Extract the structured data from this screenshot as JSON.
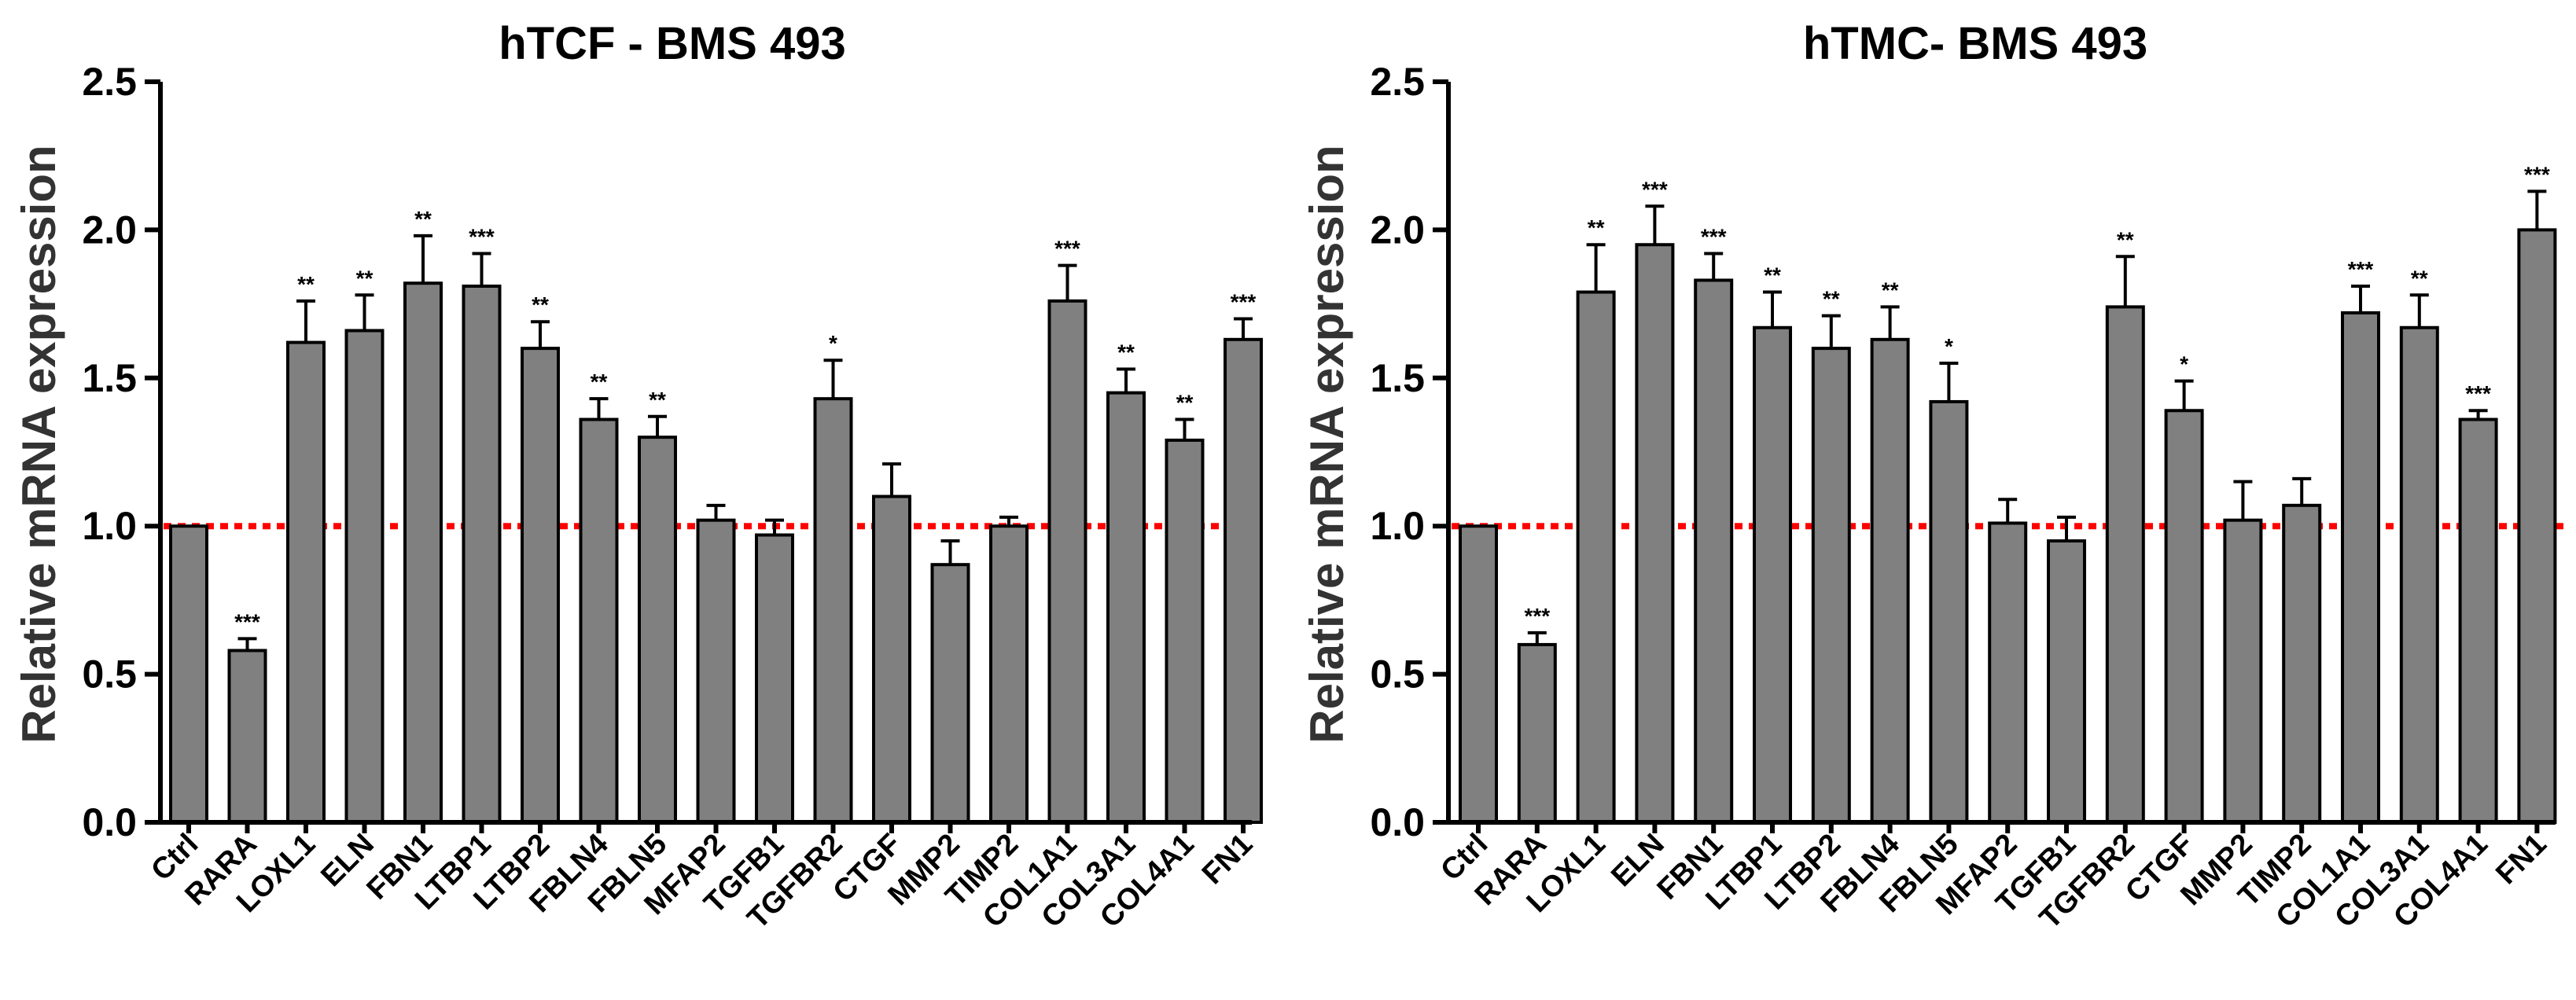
{
  "colors": {
    "bar": "#808080",
    "reference_line": "#ff0000",
    "axis": "#000000"
  },
  "chart_data": [
    {
      "type": "bar",
      "title": "hTCF - BMS 493",
      "ylabel": "Relative mRNA expression",
      "xlabel": "",
      "ylim": [
        0,
        2.5
      ],
      "yticks": [
        "0.0",
        "0.5",
        "1.0",
        "1.5",
        "2.0",
        "2.5"
      ],
      "reference_line": 1.0,
      "categories": [
        "Ctrl",
        "RARA",
        "LOXL1",
        "ELN",
        "FBN1",
        "LTBP1",
        "LTBP2",
        "FBLN4",
        "FBLN5",
        "MFAP2",
        "TGFB1",
        "TGFBR2",
        "CTGF",
        "MMP2",
        "TIMP2",
        "COL1A1",
        "COL3A1",
        "COL4A1",
        "FN1"
      ],
      "values": [
        1.0,
        0.58,
        1.62,
        1.66,
        1.82,
        1.81,
        1.6,
        1.36,
        1.3,
        1.02,
        0.97,
        1.43,
        1.1,
        0.87,
        1.0,
        1.76,
        1.45,
        1.29,
        1.63
      ],
      "errors": [
        0.0,
        0.04,
        0.14,
        0.12,
        0.16,
        0.11,
        0.09,
        0.07,
        0.07,
        0.05,
        0.05,
        0.13,
        0.11,
        0.08,
        0.03,
        0.12,
        0.08,
        0.07,
        0.07
      ],
      "significance": [
        "",
        "***",
        "**",
        "**",
        "**",
        "***",
        "**",
        "**",
        "**",
        "",
        "",
        "*",
        "",
        "",
        "",
        "***",
        "**",
        "**",
        "***"
      ]
    },
    {
      "type": "bar",
      "title": "hTMC- BMS 493",
      "ylabel": "Relative mRNA expression",
      "xlabel": "",
      "ylim": [
        0,
        2.5
      ],
      "yticks": [
        "0.0",
        "0.5",
        "1.0",
        "1.5",
        "2.0",
        "2.5"
      ],
      "reference_line": 1.0,
      "categories": [
        "Ctrl",
        "RARA",
        "LOXL1",
        "ELN",
        "FBN1",
        "LTBP1",
        "LTBP2",
        "FBLN4",
        "FBLN5",
        "MFAP2",
        "TGFB1",
        "TGFBR2",
        "CTGF",
        "MMP2",
        "TIMP2",
        "COL1A1",
        "COL3A1",
        "COL4A1",
        "FN1"
      ],
      "values": [
        1.0,
        0.6,
        1.79,
        1.95,
        1.83,
        1.67,
        1.6,
        1.63,
        1.42,
        1.01,
        0.95,
        1.74,
        1.39,
        1.02,
        1.07,
        1.72,
        1.67,
        1.36,
        2.0
      ],
      "errors": [
        0.0,
        0.04,
        0.16,
        0.13,
        0.09,
        0.12,
        0.11,
        0.11,
        0.13,
        0.08,
        0.08,
        0.17,
        0.1,
        0.13,
        0.09,
        0.09,
        0.11,
        0.03,
        0.13
      ],
      "significance": [
        "",
        "***",
        "**",
        "***",
        "***",
        "**",
        "**",
        "**",
        "*",
        "",
        "",
        "**",
        "*",
        "",
        "",
        "***",
        "**",
        "***",
        "***"
      ]
    }
  ]
}
